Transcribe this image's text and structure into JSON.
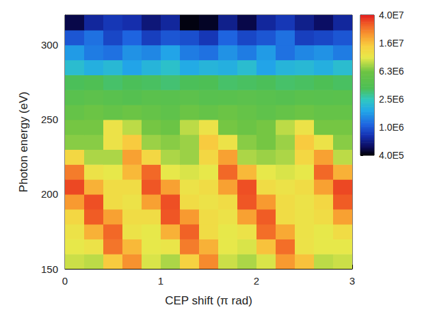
{
  "chart_data": {
    "type": "heatmap",
    "x_label": "CEP shift (π rad)",
    "y_label": "Photon energy (eV)",
    "x": [
      0.1,
      0.3,
      0.5,
      0.7,
      0.9,
      1.1,
      1.3,
      1.5,
      1.7,
      1.9,
      2.1,
      2.3,
      2.5,
      2.7,
      2.9
    ],
    "y": [
      155,
      165,
      175,
      185,
      195,
      205,
      215,
      225,
      235,
      245,
      255,
      265,
      275,
      285,
      295,
      305,
      315
    ],
    "values": [
      [
        9000000.0,
        8500000.0,
        15000000.0,
        22000000.0,
        9500000.0,
        8000000.0,
        14000000.0,
        23000000.0,
        9000000.0,
        8000000.0,
        9500000.0,
        21000000.0,
        16000000.0,
        8500000.0,
        9000000.0
      ],
      [
        10000000.0,
        11000000.0,
        26000000.0,
        17000000.0,
        10000000.0,
        10500000.0,
        25000000.0,
        18000000.0,
        10000000.0,
        9500000.0,
        16000000.0,
        27000000.0,
        11000000.0,
        10000000.0,
        10000000.0
      ],
      [
        11000000.0,
        18000000.0,
        28000000.0,
        11000000.0,
        10000000.0,
        18000000.0,
        29000000.0,
        12000000.0,
        10000000.0,
        11000000.0,
        27000000.0,
        19000000.0,
        11000000.0,
        10000000.0,
        12000000.0
      ],
      [
        13000000.0,
        30000000.0,
        20000000.0,
        12000000.0,
        12000000.0,
        31000000.0,
        21000000.0,
        12000000.0,
        11000000.0,
        20000000.0,
        30000000.0,
        12000000.0,
        11000000.0,
        12000000.0,
        20000000.0
      ],
      [
        21000000.0,
        32000000.0,
        12000000.0,
        11000000.0,
        20000000.0,
        32000000.0,
        12000000.0,
        11000000.0,
        12000000.0,
        31000000.0,
        21000000.0,
        12000000.0,
        11000000.0,
        13000000.0,
        30000000.0
      ],
      [
        33000000.0,
        18000000.0,
        12000000.0,
        12000000.0,
        31000000.0,
        20000000.0,
        11000000.0,
        12000000.0,
        20000000.0,
        32000000.0,
        12000000.0,
        11000000.0,
        12000000.0,
        20000000.0,
        33000000.0
      ],
      [
        25000000.0,
        11000000.0,
        10000000.0,
        17000000.0,
        28000000.0,
        10000000.0,
        9500000.0,
        10000000.0,
        28000000.0,
        17000000.0,
        10000000.0,
        9500000.0,
        10000000.0,
        28000000.0,
        18000000.0
      ],
      [
        13000000.0,
        8000000.0,
        8000000.0,
        20000000.0,
        13000000.0,
        8000000.0,
        7500000.0,
        13000000.0,
        20000000.0,
        8000000.0,
        7500000.0,
        8000000.0,
        13000000.0,
        20000000.0,
        8500000.0
      ],
      [
        7000000.0,
        7000000.0,
        11000000.0,
        15000000.0,
        7500000.0,
        7000000.0,
        7500000.0,
        15000000.0,
        11000000.0,
        7000000.0,
        6500000.0,
        7500000.0,
        15000000.0,
        11000000.0,
        7000000.0
      ],
      [
        6500000.0,
        6500000.0,
        11000000.0,
        8500000.0,
        6500000.0,
        6000000.0,
        8500000.0,
        11000000.0,
        6500000.0,
        6000000.0,
        6500000.0,
        8500000.0,
        11000000.0,
        6500000.0,
        6500000.0
      ],
      [
        5500000.0,
        6000000.0,
        5500000.0,
        6000000.0,
        5500000.0,
        5000000.0,
        6000000.0,
        5500000.0,
        6000000.0,
        5500000.0,
        5000000.0,
        5500000.0,
        6000000.0,
        5500000.0,
        5500000.0
      ],
      [
        4500000.0,
        4800000.0,
        4500000.0,
        4200000.0,
        4600000.0,
        4500000.0,
        4800000.0,
        4400000.0,
        4500000.0,
        4700000.0,
        4500000.0,
        4300000.0,
        4600000.0,
        4500000.0,
        4600000.0
      ],
      [
        3600000.0,
        3800000.0,
        3400000.0,
        3600000.0,
        3500000.0,
        3300000.0,
        3600000.0,
        3700000.0,
        3400000.0,
        3500000.0,
        3600000.0,
        3400000.0,
        3500000.0,
        3700000.0,
        3500000.0
      ],
      [
        2200000.0,
        1900000.0,
        2100000.0,
        1700000.0,
        2000000.0,
        2300000.0,
        1800000.0,
        2000000.0,
        1900000.0,
        2200000.0,
        1700000.0,
        2000000.0,
        2100000.0,
        1900000.0,
        2200000.0
      ],
      [
        1600000.0,
        1300000.0,
        1200000.0,
        1500000.0,
        1400000.0,
        1700000.0,
        1300000.0,
        1200000.0,
        1500000.0,
        1300000.0,
        1600000.0,
        1200000.0,
        1400000.0,
        1500000.0,
        1300000.0
      ],
      [
        1000000.0,
        1200000.0,
        900000.0,
        1100000.0,
        850000.0,
        1000000.0,
        950000.0,
        800000.0,
        1100000.0,
        900000.0,
        1000000.0,
        1200000.0,
        850000.0,
        900000.0,
        1000000.0
      ],
      [
        500000.0,
        700000.0,
        800000.0,
        750000.0,
        600000.0,
        700000.0,
        420000.0,
        450000.0,
        650000.0,
        500000.0,
        700000.0,
        800000.0,
        650000.0,
        550000.0,
        700000.0
      ]
    ],
    "xlim": [
      0,
      3
    ],
    "xticks": [
      0,
      1,
      2,
      3
    ],
    "ylim": [
      150,
      320
    ],
    "yticks": [
      150,
      200,
      250,
      300
    ],
    "colorbar": {
      "range": [
        400000,
        40000000
      ],
      "ticks": [
        {
          "value": 400000,
          "label": "4.0E5"
        },
        {
          "value": 1000000,
          "label": "1.0E6"
        },
        {
          "value": 2500000,
          "label": "2.5E6"
        },
        {
          "value": 6300000,
          "label": "6.3E6"
        },
        {
          "value": 16000000,
          "label": "1.6E7"
        },
        {
          "value": 40000000,
          "label": "4.0E7"
        }
      ]
    }
  }
}
